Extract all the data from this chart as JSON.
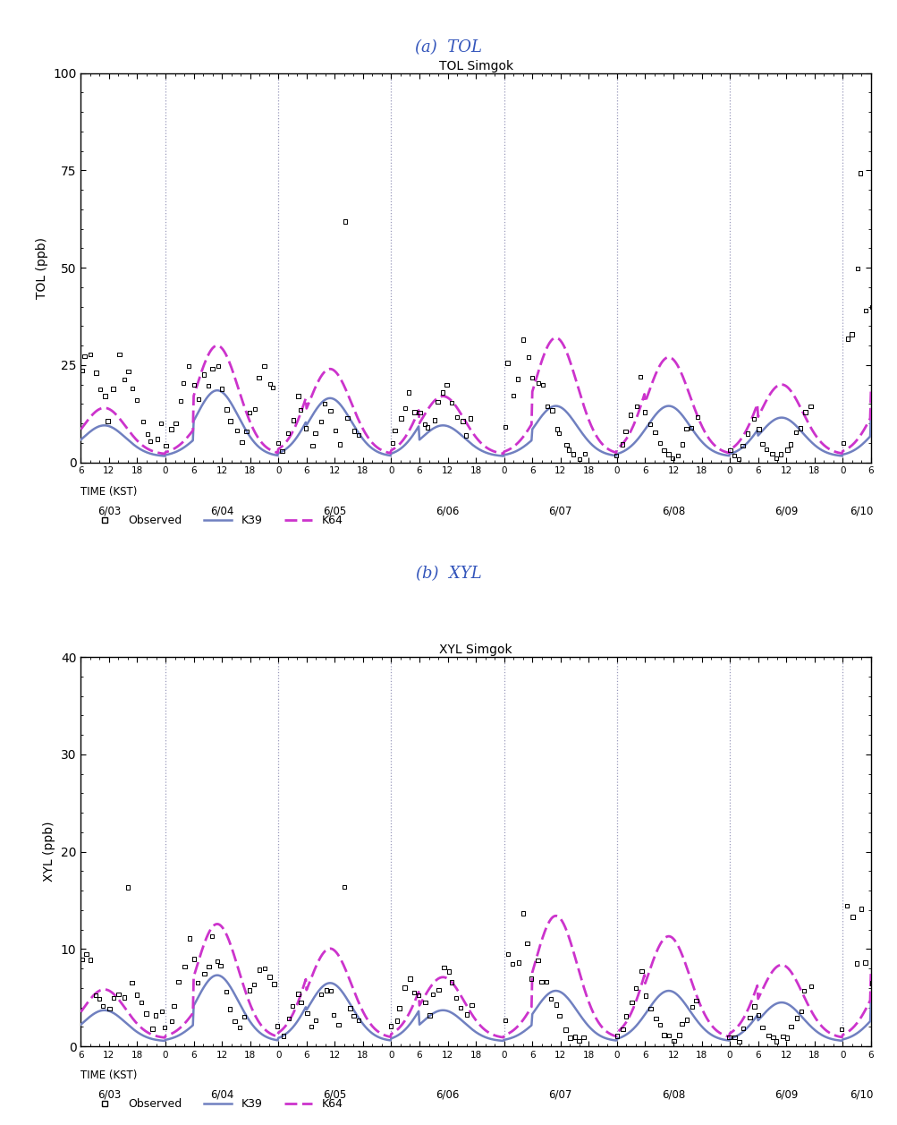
{
  "title_a": "(a)  TOL",
  "title_b": "(b)  XYL",
  "subplot_title_a": "TOL Simgok",
  "subplot_title_b": "XYL Simgok",
  "ylabel_a": "TOL (ppb)",
  "ylabel_b": "XYL (ppb)",
  "xlabel": "TIME (KST)",
  "ylim_a": [
    0,
    100
  ],
  "ylim_b": [
    0,
    40
  ],
  "yticks_a": [
    0,
    25,
    50,
    75,
    100
  ],
  "yticks_b": [
    0,
    10,
    20,
    30,
    40
  ],
  "date_labels": [
    "6/03",
    "6/04",
    "6/05",
    "6/06",
    "6/07",
    "6/08",
    "6/09",
    "6/10"
  ],
  "color_k39": "#7080c0",
  "color_k64": "#cc33cc",
  "color_obs": "black",
  "legend_entries": [
    "Observed",
    "K39",
    "K64"
  ],
  "grid_color": "#9999bb",
  "background_color": "white",
  "title_color": "#3355bb"
}
